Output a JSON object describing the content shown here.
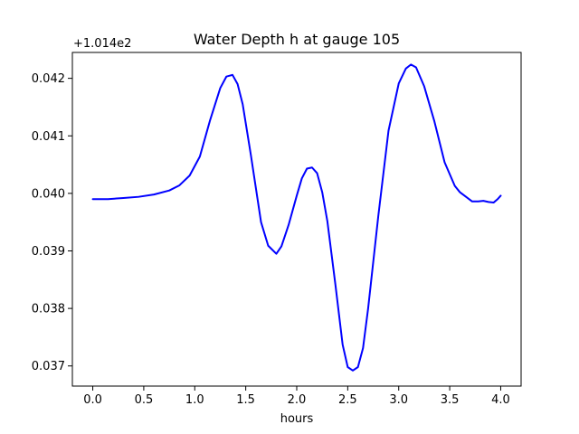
{
  "chart_data": {
    "type": "line",
    "title": "Water Depth h at gauge 105",
    "xlabel": "hours",
    "ylabel": "",
    "y_offset_label": "+1.014e2",
    "xlim": [
      -0.2,
      4.2
    ],
    "ylim": [
      0.03665,
      0.04245
    ],
    "x_ticks": [
      0.0,
      0.5,
      1.0,
      1.5,
      2.0,
      2.5,
      3.0,
      3.5,
      4.0
    ],
    "x_tick_labels": [
      "0.0",
      "0.5",
      "1.0",
      "1.5",
      "2.0",
      "2.5",
      "3.0",
      "3.5",
      "4.0"
    ],
    "y_ticks": [
      0.037,
      0.038,
      0.039,
      0.04,
      0.041,
      0.042
    ],
    "y_tick_labels": [
      "0.037",
      "0.038",
      "0.039",
      "0.040",
      "0.041",
      "0.042"
    ],
    "grid": false,
    "line_color": "#0000ff",
    "series": [
      {
        "x": [
          0.0,
          0.15,
          0.3,
          0.45,
          0.6,
          0.75,
          0.85,
          0.95,
          1.05,
          1.15,
          1.25,
          1.31,
          1.37,
          1.42,
          1.47,
          1.55,
          1.65,
          1.72,
          1.8,
          1.85,
          1.92,
          2.0,
          2.05,
          2.1,
          2.15,
          2.2,
          2.25,
          2.3,
          2.38,
          2.45,
          2.5,
          2.55,
          2.6,
          2.65,
          2.7,
          2.8,
          2.9,
          3.0,
          3.07,
          3.12,
          3.17,
          3.25,
          3.35,
          3.45,
          3.55,
          3.6,
          3.66,
          3.72,
          3.78,
          3.83,
          3.88,
          3.93,
          3.97,
          4.0
        ],
        "y": [
          0.0399,
          0.0399,
          0.03992,
          0.03994,
          0.03998,
          0.04005,
          0.04014,
          0.04031,
          0.04064,
          0.04127,
          0.04183,
          0.04203,
          0.04206,
          0.0419,
          0.04155,
          0.04067,
          0.0395,
          0.03909,
          0.03895,
          0.03908,
          0.03945,
          0.03996,
          0.04026,
          0.04043,
          0.04045,
          0.04035,
          0.04002,
          0.03952,
          0.0384,
          0.03737,
          0.03698,
          0.03692,
          0.03698,
          0.03731,
          0.038,
          0.03961,
          0.04109,
          0.04191,
          0.04217,
          0.04224,
          0.04219,
          0.04186,
          0.04125,
          0.04054,
          0.04013,
          0.04002,
          0.03994,
          0.03986,
          0.03986,
          0.03987,
          0.03985,
          0.03984,
          0.0399,
          0.03996
        ]
      }
    ]
  }
}
